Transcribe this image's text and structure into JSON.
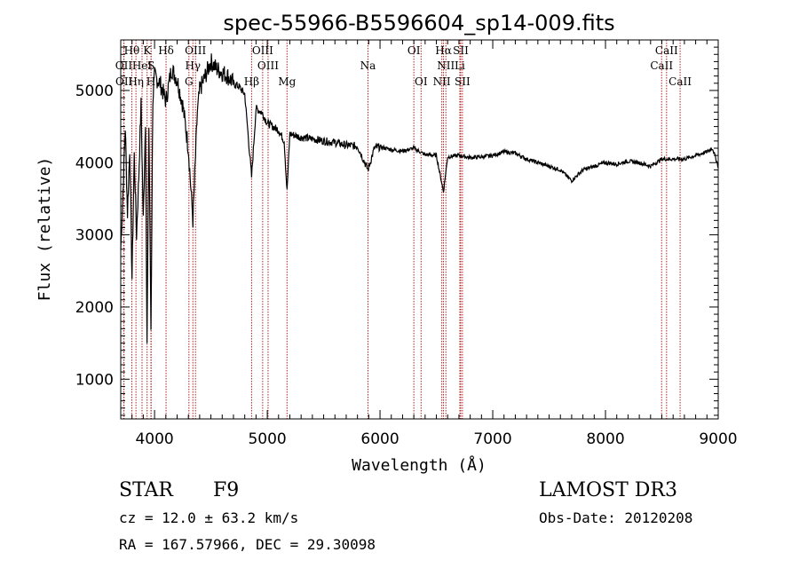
{
  "chart_data": {
    "type": "line",
    "title": "spec-55966-B5596604_sp14-009.fits",
    "xlabel": "Wavelength (Å)",
    "ylabel": "Flux (relative)",
    "xlim": [
      3700,
      9000
    ],
    "ylim": [
      450,
      5700
    ],
    "xticks": [
      4000,
      5000,
      6000,
      7000,
      8000,
      9000
    ],
    "yticks": [
      1000,
      2000,
      3000,
      4000,
      5000
    ],
    "series": [
      {
        "name": "flux",
        "x": [
          3700,
          3720,
          3740,
          3760,
          3780,
          3800,
          3820,
          3840,
          3860,
          3880,
          3900,
          3920,
          3933,
          3950,
          3968,
          3985,
          4000,
          4050,
          4101,
          4150,
          4200,
          4250,
          4300,
          4340,
          4380,
          4400,
          4450,
          4500,
          4550,
          4600,
          4650,
          4700,
          4750,
          4800,
          4861,
          4900,
          4950,
          5000,
          5050,
          5100,
          5150,
          5175,
          5200,
          5300,
          5400,
          5500,
          5600,
          5700,
          5800,
          5893,
          5950,
          6000,
          6100,
          6200,
          6300,
          6400,
          6500,
          6563,
          6600,
          6700,
          6800,
          6900,
          7000,
          7100,
          7200,
          7300,
          7400,
          7500,
          7600,
          7700,
          7800,
          7900,
          8000,
          8100,
          8200,
          8300,
          8400,
          8500,
          8600,
          8700,
          8800,
          8900,
          8950,
          9000
        ],
        "y": [
          2800,
          3600,
          4500,
          3300,
          4200,
          2400,
          4100,
          3000,
          3800,
          4800,
          3200,
          4600,
          1450,
          4500,
          1700,
          4900,
          5200,
          5100,
          4850,
          5300,
          5150,
          4800,
          4200,
          3200,
          4700,
          5000,
          5200,
          5400,
          5300,
          5250,
          5200,
          5100,
          5050,
          4950,
          3800,
          4750,
          4700,
          4550,
          4500,
          4450,
          4300,
          3600,
          4400,
          4350,
          4330,
          4300,
          4280,
          4240,
          4230,
          3900,
          4200,
          4220,
          4180,
          4160,
          4200,
          4110,
          4100,
          3600,
          4080,
          4100,
          4070,
          4080,
          4100,
          4150,
          4130,
          4050,
          4000,
          3950,
          3900,
          3750,
          3900,
          3950,
          4000,
          3980,
          4020,
          4000,
          3950,
          4050,
          4050,
          4050,
          4100,
          4150,
          4200,
          3950
        ]
      }
    ],
    "spectral_lines": [
      {
        "label": "Hθ",
        "x": 3798,
        "row": 1
      },
      {
        "label": "OII",
        "x": 3727,
        "row": 2
      },
      {
        "label": "OII",
        "x": 3729,
        "row": 3
      },
      {
        "label": "Hη",
        "x": 3835,
        "row": 3
      },
      {
        "label": "K",
        "x": 3934,
        "row": 1
      },
      {
        "label": "HeI",
        "x": 3889,
        "row": 2
      },
      {
        "label": "S",
        "x": 3970,
        "row": 2
      },
      {
        "label": "H",
        "x": 3968,
        "row": 3
      },
      {
        "label": "Hδ",
        "x": 4102,
        "row": 1
      },
      {
        "label": "OIII",
        "x": 4363,
        "row": 1
      },
      {
        "label": "Hγ",
        "x": 4340,
        "row": 2
      },
      {
        "label": "G",
        "x": 4305,
        "row": 3
      },
      {
        "label": "OIII",
        "x": 4959,
        "row": 1
      },
      {
        "label": "OIII",
        "x": 5007,
        "row": 2
      },
      {
        "label": "Hβ",
        "x": 4861,
        "row": 3
      },
      {
        "label": "Mg",
        "x": 5175,
        "row": 3
      },
      {
        "label": "Na",
        "x": 5893,
        "row": 2
      },
      {
        "label": "OI",
        "x": 6300,
        "row": 1
      },
      {
        "label": "OI",
        "x": 6364,
        "row": 3
      },
      {
        "label": "Hα",
        "x": 6563,
        "row": 1
      },
      {
        "label": "SII",
        "x": 6716,
        "row": 1
      },
      {
        "label": "NII",
        "x": 6584,
        "row": 2
      },
      {
        "label": "Li",
        "x": 6708,
        "row": 2
      },
      {
        "label": "NII",
        "x": 6548,
        "row": 3
      },
      {
        "label": "SII",
        "x": 6731,
        "row": 3
      },
      {
        "label": "CaII",
        "x": 8542,
        "row": 1
      },
      {
        "label": "CaII",
        "x": 8498,
        "row": 2
      },
      {
        "label": "CaII",
        "x": 8662,
        "row": 3
      }
    ],
    "line_color": "#000000",
    "marker_color": "#b22222"
  },
  "info": {
    "object_type": "STAR",
    "subclass": "F9",
    "survey": "LAMOST DR3",
    "redshift": "cz = 12.0 ± 63.2 km/s",
    "obs_date": "Obs-Date: 20120208",
    "coords": "RA = 167.57966, DEC =  29.30098"
  }
}
